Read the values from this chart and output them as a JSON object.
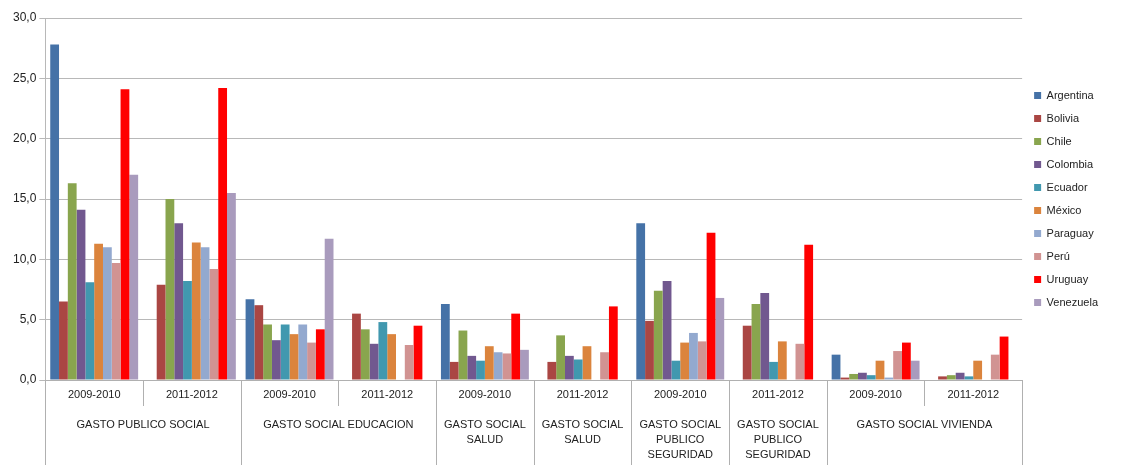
{
  "chart_data": {
    "type": "bar",
    "categories": [
      "2009-2010\nGASTO PUBLICO SOCIAL",
      "2011-2012",
      "2009-2010\nGASTO SOCIAL EDUCACION",
      "2011-2012",
      "2009-2010\nGASTO SOCIAL\nSALUD",
      "2011-2012\nGASTO SOCIAL\nSALUD",
      "2009-2010\nGASTO SOCIAL\nPUBLICO\nSEGURIDAD",
      "2011-2012\nGASTO SOCIAL\nPUBLICO\nSEGURIDAD",
      "2009-2010\nGASTO SOCIAL VIVIENDA",
      "2011-2012"
    ],
    "series": [
      {
        "name": "Argentina",
        "color": "#4572a7",
        "values": [
          27.8,
          null,
          6.7,
          null,
          6.3,
          null,
          13.0,
          null,
          2.1,
          null
        ]
      },
      {
        "name": "Bolivia",
        "color": "#aa4643",
        "values": [
          6.5,
          7.9,
          6.2,
          5.5,
          1.5,
          1.5,
          4.9,
          4.5,
          0.2,
          0.3
        ]
      },
      {
        "name": "Chile",
        "color": "#89a54e",
        "values": [
          16.3,
          15.0,
          4.6,
          4.2,
          4.1,
          3.7,
          7.4,
          6.3,
          0.5,
          0.4
        ]
      },
      {
        "name": "Colombia",
        "color": "#71588f",
        "values": [
          14.1,
          13.0,
          3.3,
          3.0,
          2.0,
          2.0,
          8.2,
          7.2,
          0.6,
          0.6
        ]
      },
      {
        "name": "Ecuador",
        "color": "#4198af",
        "values": [
          8.1,
          8.2,
          4.6,
          4.8,
          1.6,
          1.7,
          1.6,
          1.5,
          0.4,
          0.3
        ]
      },
      {
        "name": "México",
        "color": "#db843d",
        "values": [
          11.3,
          11.4,
          3.8,
          3.8,
          2.8,
          2.8,
          3.1,
          3.2,
          1.6,
          1.6
        ]
      },
      {
        "name": "Paraguay",
        "color": "#93a9cf",
        "values": [
          11.0,
          11.0,
          4.6,
          null,
          2.3,
          null,
          3.9,
          null,
          0.2,
          null
        ]
      },
      {
        "name": "Perú",
        "color": "#d19392",
        "values": [
          9.7,
          9.2,
          3.1,
          2.9,
          2.2,
          2.3,
          3.2,
          3.0,
          2.4,
          2.1
        ]
      },
      {
        "name": "Uruguay",
        "color": "#ff0000",
        "values": [
          24.1,
          24.2,
          4.2,
          4.5,
          5.5,
          6.1,
          12.2,
          11.2,
          3.1,
          3.6
        ]
      },
      {
        "name": "Venezuela",
        "color": "#a99bbd",
        "values": [
          17.0,
          15.5,
          11.7,
          null,
          2.5,
          null,
          6.8,
          null,
          1.6,
          null
        ]
      }
    ],
    "ylim": [
      0,
      30
    ],
    "yticks": [
      {
        "value": 0,
        "label": "0,0"
      },
      {
        "value": 5,
        "label": "5,0"
      },
      {
        "value": 10,
        "label": "10,0"
      },
      {
        "value": 15,
        "label": "15,0"
      },
      {
        "value": 20,
        "label": "20,0"
      },
      {
        "value": 25,
        "label": "25,0"
      },
      {
        "value": 30,
        "label": "30,0"
      }
    ],
    "grid": "y",
    "legend": "right"
  }
}
